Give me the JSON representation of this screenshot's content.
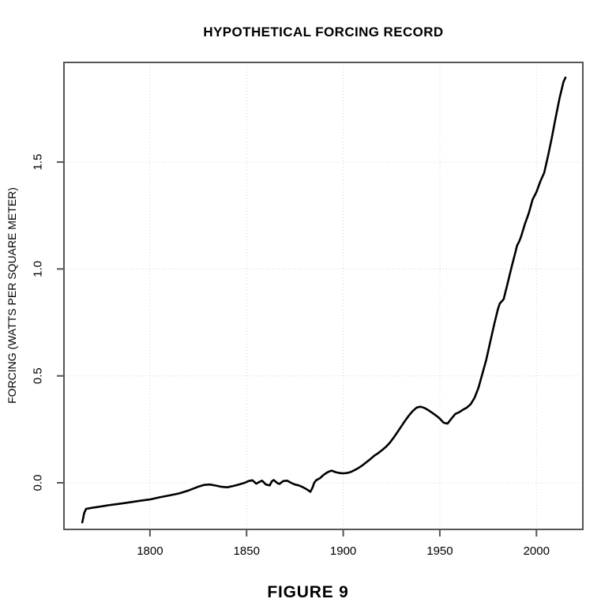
{
  "page": {
    "background_color": "#ffffff"
  },
  "caption": "FIGURE 9",
  "chart_data": {
    "type": "line",
    "title": "HYPOTHETICAL FORCING RECORD",
    "xlabel": "",
    "ylabel": "FORCING (WATTS PER SQUARE METER)",
    "xlim": [
      1755.5,
      2024
    ],
    "ylim": [
      -0.218,
      1.966
    ],
    "x_ticks": [
      {
        "value": 1800,
        "label": "1800"
      },
      {
        "value": 1850,
        "label": "1850"
      },
      {
        "value": 1900,
        "label": "1900"
      },
      {
        "value": 1950,
        "label": "1950"
      },
      {
        "value": 2000,
        "label": "2000"
      }
    ],
    "y_ticks": [
      {
        "value": 0.0,
        "label": "0.0"
      },
      {
        "value": 0.5,
        "label": "0.5"
      },
      {
        "value": 1.0,
        "label": "1.0"
      },
      {
        "value": 1.5,
        "label": "1.5"
      }
    ],
    "grid": {
      "show": true,
      "style": "dotted",
      "color": "#d3d3d3"
    },
    "legend_position": "none",
    "axes": {
      "frame_color": "#555555",
      "tick_color": "#555555",
      "text_color": "#000000"
    },
    "series": [
      {
        "name": "hypothetical forcing",
        "color": "#000000",
        "line_width": 2.6,
        "points": [
          [
            1765,
            -0.185
          ],
          [
            1766,
            -0.14
          ],
          [
            1767,
            -0.122
          ],
          [
            1770,
            -0.117
          ],
          [
            1775,
            -0.11
          ],
          [
            1780,
            -0.103
          ],
          [
            1785,
            -0.097
          ],
          [
            1790,
            -0.091
          ],
          [
            1795,
            -0.084
          ],
          [
            1800,
            -0.078
          ],
          [
            1805,
            -0.068
          ],
          [
            1810,
            -0.059
          ],
          [
            1815,
            -0.05
          ],
          [
            1820,
            -0.036
          ],
          [
            1825,
            -0.018
          ],
          [
            1828,
            -0.01
          ],
          [
            1831,
            -0.008
          ],
          [
            1834,
            -0.013
          ],
          [
            1837,
            -0.019
          ],
          [
            1840,
            -0.021
          ],
          [
            1843,
            -0.015
          ],
          [
            1846,
            -0.008
          ],
          [
            1849,
            0.0
          ],
          [
            1851,
            0.008
          ],
          [
            1853,
            0.012
          ],
          [
            1855,
            -0.004
          ],
          [
            1857,
            0.006
          ],
          [
            1858,
            0.01
          ],
          [
            1860,
            -0.008
          ],
          [
            1862,
            -0.012
          ],
          [
            1863,
            0.006
          ],
          [
            1864,
            0.013
          ],
          [
            1866,
            -0.002
          ],
          [
            1867,
            -0.005
          ],
          [
            1869,
            0.008
          ],
          [
            1871,
            0.01
          ],
          [
            1873,
            0.0
          ],
          [
            1875,
            -0.008
          ],
          [
            1877,
            -0.012
          ],
          [
            1879,
            -0.02
          ],
          [
            1881,
            -0.03
          ],
          [
            1883,
            -0.042
          ],
          [
            1884,
            -0.025
          ],
          [
            1885,
            0.0
          ],
          [
            1886,
            0.012
          ],
          [
            1888,
            0.022
          ],
          [
            1890,
            0.038
          ],
          [
            1892,
            0.05
          ],
          [
            1894,
            0.057
          ],
          [
            1896,
            0.05
          ],
          [
            1898,
            0.046
          ],
          [
            1900,
            0.044
          ],
          [
            1902,
            0.046
          ],
          [
            1904,
            0.051
          ],
          [
            1906,
            0.06
          ],
          [
            1908,
            0.07
          ],
          [
            1910,
            0.082
          ],
          [
            1912,
            0.096
          ],
          [
            1914,
            0.11
          ],
          [
            1916,
            0.126
          ],
          [
            1918,
            0.138
          ],
          [
            1920,
            0.152
          ],
          [
            1922,
            0.167
          ],
          [
            1924,
            0.186
          ],
          [
            1926,
            0.21
          ],
          [
            1928,
            0.236
          ],
          [
            1930,
            0.263
          ],
          [
            1932,
            0.29
          ],
          [
            1934,
            0.315
          ],
          [
            1936,
            0.336
          ],
          [
            1938,
            0.352
          ],
          [
            1940,
            0.356
          ],
          [
            1942,
            0.35
          ],
          [
            1944,
            0.34
          ],
          [
            1946,
            0.328
          ],
          [
            1948,
            0.315
          ],
          [
            1950,
            0.3
          ],
          [
            1952,
            0.281
          ],
          [
            1954,
            0.277
          ],
          [
            1956,
            0.3
          ],
          [
            1958,
            0.322
          ],
          [
            1960,
            0.33
          ],
          [
            1962,
            0.342
          ],
          [
            1964,
            0.352
          ],
          [
            1966,
            0.368
          ],
          [
            1968,
            0.398
          ],
          [
            1970,
            0.445
          ],
          [
            1972,
            0.51
          ],
          [
            1974,
            0.575
          ],
          [
            1976,
            0.655
          ],
          [
            1978,
            0.735
          ],
          [
            1980,
            0.81
          ],
          [
            1981,
            0.838
          ],
          [
            1982,
            0.848
          ],
          [
            1983,
            0.858
          ],
          [
            1985,
            0.93
          ],
          [
            1987,
            1.005
          ],
          [
            1989,
            1.075
          ],
          [
            1990,
            1.11
          ],
          [
            1991,
            1.128
          ],
          [
            1992,
            1.15
          ],
          [
            1994,
            1.21
          ],
          [
            1996,
            1.26
          ],
          [
            1998,
            1.325
          ],
          [
            2000,
            1.36
          ],
          [
            2002,
            1.41
          ],
          [
            2004,
            1.45
          ],
          [
            2006,
            1.53
          ],
          [
            2008,
            1.615
          ],
          [
            2010,
            1.71
          ],
          [
            2012,
            1.8
          ],
          [
            2014,
            1.875
          ],
          [
            2015,
            1.895
          ]
        ]
      }
    ]
  }
}
